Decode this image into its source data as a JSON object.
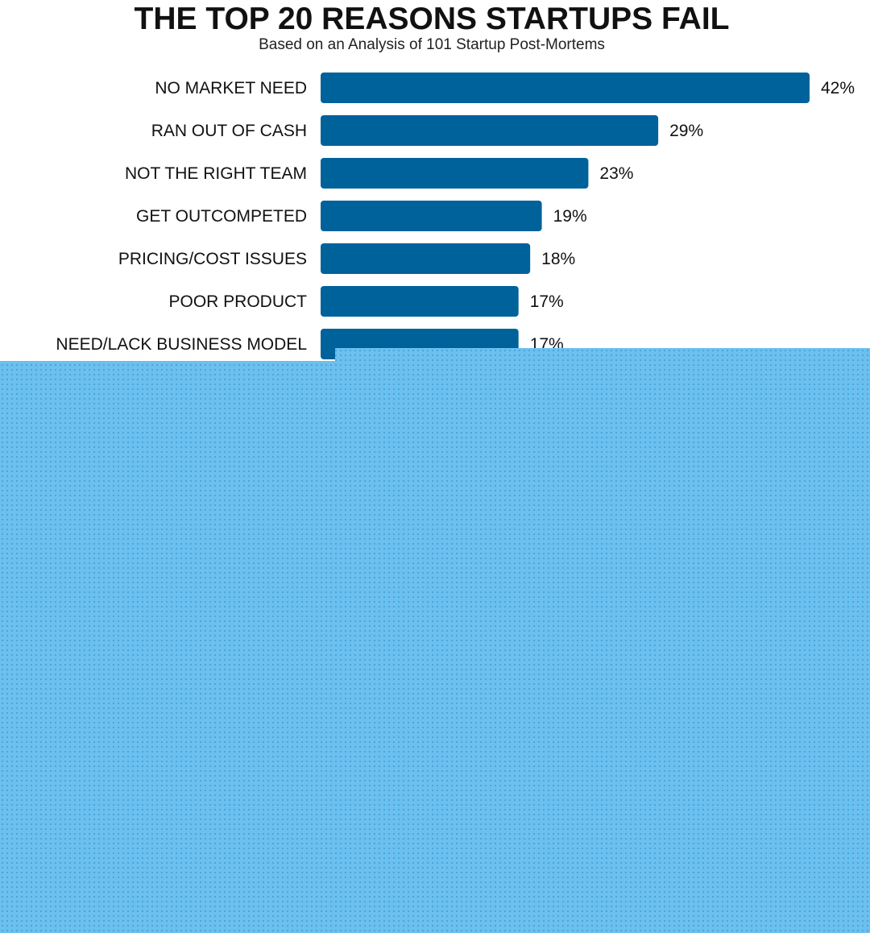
{
  "chart_data": {
    "type": "bar",
    "orientation": "horizontal",
    "title": "THE TOP 20 REASONS STARTUPS FAIL",
    "subtitle": "Based on an Analysis of 101 Startup Post-Mortems",
    "categories": [
      "NO MARKET NEED",
      "RAN OUT OF CASH",
      "NOT THE RIGHT TEAM",
      "GET OUTCOMPETED",
      "PRICING/COST ISSUES",
      "POOR PRODUCT",
      "NEED/LACK BUSINESS MODEL"
    ],
    "values": [
      42,
      29,
      23,
      19,
      18,
      17,
      17
    ],
    "value_labels": [
      "42%",
      "29%",
      "23%",
      "19%",
      "18%",
      "17%",
      "17%"
    ],
    "xlim": [
      0,
      42
    ],
    "grid": false,
    "legend": "none"
  },
  "colors": {
    "bar": "#00629b",
    "title": "#111111",
    "subtitle": "#222222",
    "text": "#111111",
    "overlay": "#6cc0ee",
    "overlay_dots": "#3d9fd6"
  }
}
